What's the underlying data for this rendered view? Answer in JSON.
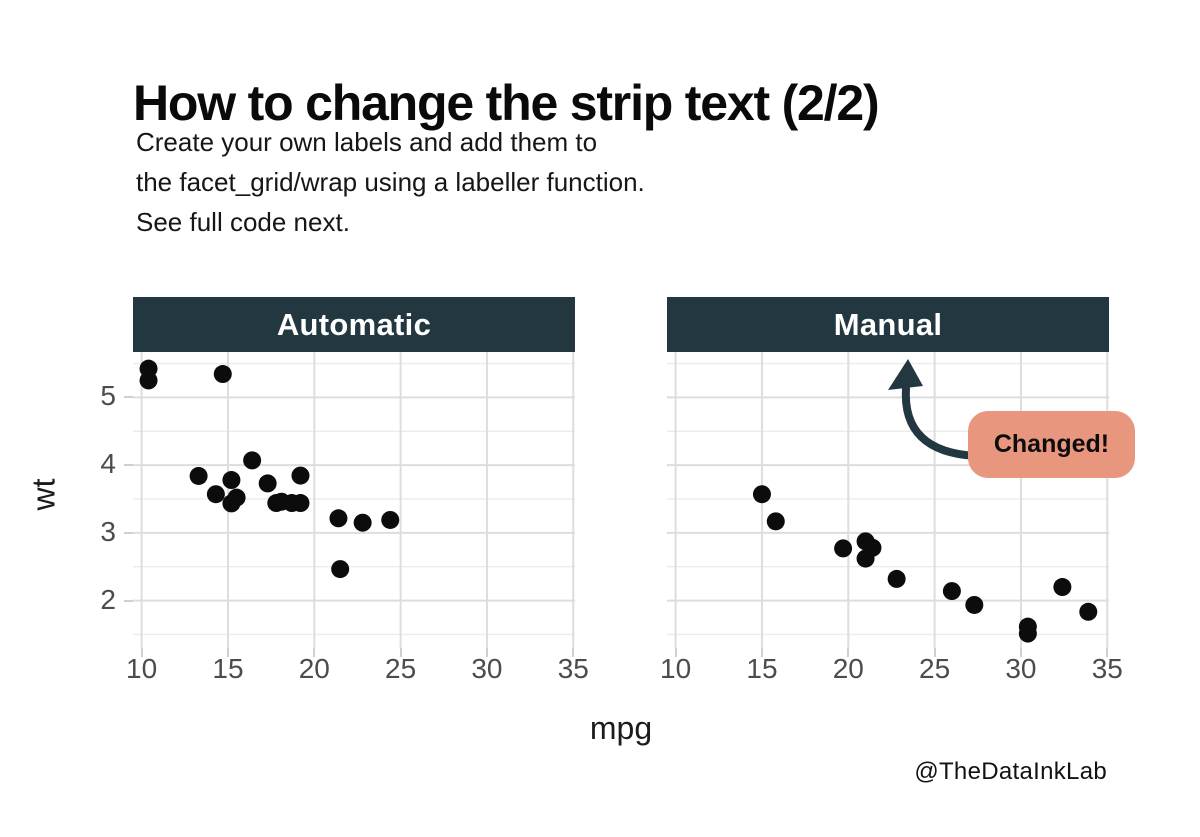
{
  "title": "How to change the strip text (2/2)",
  "subtitle": {
    "lines": [
      "Create your own labels and add them to",
      "the facet_grid/wrap using a labeller function.",
      "See full code next."
    ]
  },
  "annotation": {
    "label": "Changed!"
  },
  "footer": {
    "credit": "@TheDataInkLab"
  },
  "colors": {
    "strip_bg": "#22373f",
    "strip_text": "#ffffff",
    "point": "#0c0c0c",
    "grid_major": "#dddddd",
    "grid_minor": "#ececec",
    "tick_mark": "#cfcfcf",
    "tick_text": "#4c4c4c",
    "arrow": "#22373f",
    "badge_bg": "#e9967e",
    "badge_text": "#0d0d0d"
  },
  "chart_data": {
    "type": "scatter",
    "title": "",
    "xlabel": "mpg",
    "ylabel": "wt",
    "xlim": [
      9.5,
      35.1
    ],
    "ylim": [
      1.3,
      5.67
    ],
    "x_ticks": [
      10,
      15,
      20,
      25,
      30,
      35
    ],
    "y_ticks": [
      2,
      3,
      4,
      5
    ],
    "grid": {
      "horizontal_minor_step": 0.5,
      "vertical_minor": false,
      "background": "white"
    },
    "legend": "none",
    "facets": [
      {
        "label": "Automatic",
        "points": [
          [
            10.4,
            5.25
          ],
          [
            10.4,
            5.424
          ],
          [
            13.3,
            3.84
          ],
          [
            14.3,
            3.57
          ],
          [
            14.7,
            5.345
          ],
          [
            15.2,
            3.78
          ],
          [
            15.2,
            3.435
          ],
          [
            15.5,
            3.52
          ],
          [
            16.4,
            4.07
          ],
          [
            17.3,
            3.73
          ],
          [
            17.8,
            3.44
          ],
          [
            18.1,
            3.46
          ],
          [
            18.7,
            3.44
          ],
          [
            19.2,
            3.44
          ],
          [
            19.2,
            3.845
          ],
          [
            21.4,
            3.215
          ],
          [
            21.5,
            2.465
          ],
          [
            22.8,
            3.15
          ],
          [
            24.4,
            3.19
          ]
        ]
      },
      {
        "label": "Manual",
        "points": [
          [
            15.0,
            3.57
          ],
          [
            15.8,
            3.17
          ],
          [
            19.7,
            2.77
          ],
          [
            21.0,
            2.62
          ],
          [
            21.0,
            2.875
          ],
          [
            21.4,
            2.78
          ],
          [
            22.8,
            2.32
          ],
          [
            26.0,
            2.14
          ],
          [
            27.3,
            1.935
          ],
          [
            30.4,
            1.615
          ],
          [
            30.4,
            1.513
          ],
          [
            32.4,
            2.2
          ],
          [
            33.9,
            1.835
          ]
        ]
      }
    ]
  }
}
